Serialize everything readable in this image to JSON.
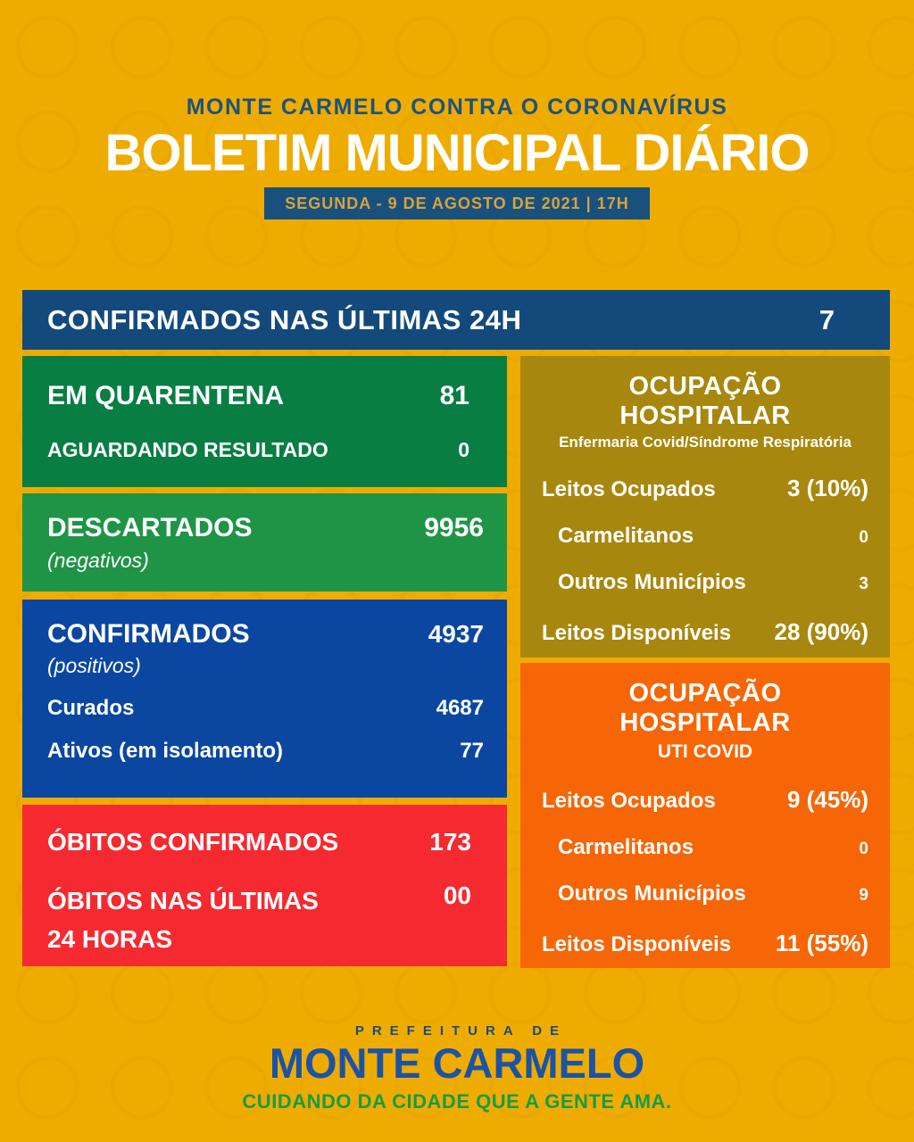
{
  "header": {
    "top_line": "MONTE CARMELO CONTRA O CORONAVÍRUS",
    "title": "BOLETIM MUNICIPAL DIÁRIO",
    "date_badge": "SEGUNDA - 9 DE AGOSTO DE 2021 | 17H"
  },
  "summary_bar": {
    "label": "CONFIRMADOS NAS ÚLTIMAS 24H",
    "value": "7"
  },
  "left_column": {
    "quarantine_box": {
      "rows": [
        {
          "label": "EM QUARENTENA",
          "value": "81"
        },
        {
          "label": "AGUARDANDO RESULTADO",
          "value": "0"
        }
      ]
    },
    "discarded_box": {
      "label": "DESCARTADOS",
      "sublabel": "(negativos)",
      "value": "9956"
    },
    "confirmed_box": {
      "label": "CONFIRMADOS",
      "sublabel": "(positivos)",
      "value": "4937",
      "rows": [
        {
          "label": "Curados",
          "value": "4687"
        },
        {
          "label": "Ativos (em isolamento)",
          "value": "77"
        }
      ]
    },
    "deaths_box": {
      "row1": {
        "label": "ÓBITOS CONFIRMADOS",
        "value": "173"
      },
      "row2": {
        "label_line1": "ÓBITOS NAS ÚLTIMAS",
        "label_line2": "24 HORAS",
        "value": "00"
      }
    }
  },
  "right_column": {
    "ward_box": {
      "title": "OCUPAÇÃO HOSPITALAR",
      "subtitle": "Enfermaria Covid/Síndrome Respiratória",
      "rows": [
        {
          "label": "Leitos Ocupados",
          "value": "3 (10%)"
        },
        {
          "label": "Carmelitanos",
          "value": "0"
        },
        {
          "label": "Outros Municípios",
          "value": "3"
        },
        {
          "label": "Leitos Disponíveis",
          "value": "28 (90%)"
        }
      ]
    },
    "icu_box": {
      "title": "OCUPAÇÃO HOSPITALAR",
      "subtitle": "UTI COVID",
      "rows": [
        {
          "label": "Leitos Ocupados",
          "value": "9 (45%)"
        },
        {
          "label": "Carmelitanos",
          "value": "0"
        },
        {
          "label": "Outros Municípios",
          "value": "9"
        },
        {
          "label": "Leitos Disponíveis",
          "value": "11 (55%)"
        }
      ]
    }
  },
  "footer": {
    "pre_title": "PREFEITURA DE",
    "city": "MONTE CARMELO",
    "tagline": "CUIDANDO DA CIDADE QUE A GENTE AMA."
  },
  "colors": {
    "background": "#EFAC00",
    "navy_bar": "#14497C",
    "badge_blue": "#19517D",
    "badge_text_gold": "#D8A23C",
    "green_dark": "#087E43",
    "green_bright": "#1F9447",
    "royal_blue": "#0B47A1",
    "red": "#F52A30",
    "olive": "#A8870E",
    "orange": "#F66606",
    "footer_blue": "#1C53A4",
    "footer_green": "#189B46",
    "header_blue": "#1E527E"
  }
}
